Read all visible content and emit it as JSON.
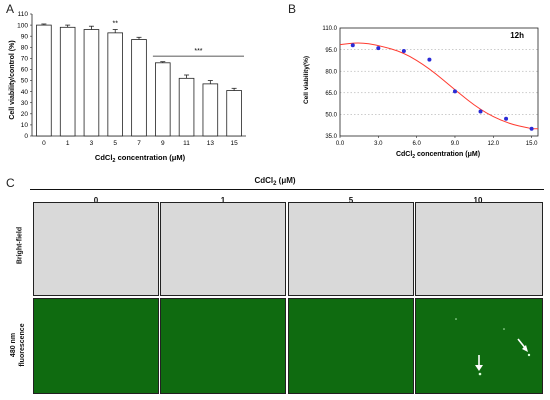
{
  "panels": {
    "a": "A",
    "b": "B",
    "c": "C"
  },
  "chart_data": [
    {
      "type": "bar",
      "categories": [
        "0",
        "1",
        "3",
        "5",
        "7",
        "9",
        "11",
        "13",
        "15"
      ],
      "values": [
        100,
        98,
        96,
        93,
        87,
        66,
        52,
        47,
        41
      ],
      "errors": [
        1,
        2,
        3,
        3,
        2,
        1,
        3,
        3,
        2
      ],
      "ylabel": "Cell viability/control (%)",
      "xlabel": "CdCl2 concentration (μM)",
      "yticks": [
        0,
        10,
        20,
        30,
        40,
        50,
        60,
        70,
        80,
        90,
        100,
        110
      ],
      "ylim": [
        0,
        110
      ],
      "annotations": [
        {
          "text": "**",
          "category": "5"
        },
        {
          "text": "***",
          "categories": [
            "9",
            "15"
          ]
        }
      ],
      "bar_color": "#ffffff"
    },
    {
      "type": "scatter",
      "title": "12h",
      "x": [
        1,
        3,
        5,
        7,
        9,
        11,
        13,
        15
      ],
      "y": [
        98,
        96,
        94,
        88,
        66,
        52,
        47,
        40
      ],
      "fit_curve": true,
      "xlabel": "CdCl2 concentration (μM)",
      "ylabel": "Cell viability(%)",
      "xticks": [
        "0.0",
        "3.0",
        "6.0",
        "9.0",
        "12.0",
        "15.0"
      ],
      "yticks": [
        "35.0",
        "50.0",
        "65.0",
        "80.0",
        "95.0",
        "110.0"
      ],
      "xlim": [
        0,
        15.5
      ],
      "ylim": [
        35,
        110
      ],
      "point_color": "#2b2bd6",
      "curve_color": "#ff3b30",
      "grid": "dotted horizontal"
    }
  ],
  "micrographs": {
    "header": "CdCl2 (μM)",
    "columns": [
      "0",
      "1",
      "5",
      "10"
    ],
    "rows": [
      "Bright-field",
      "480 nm fluorescence"
    ]
  }
}
